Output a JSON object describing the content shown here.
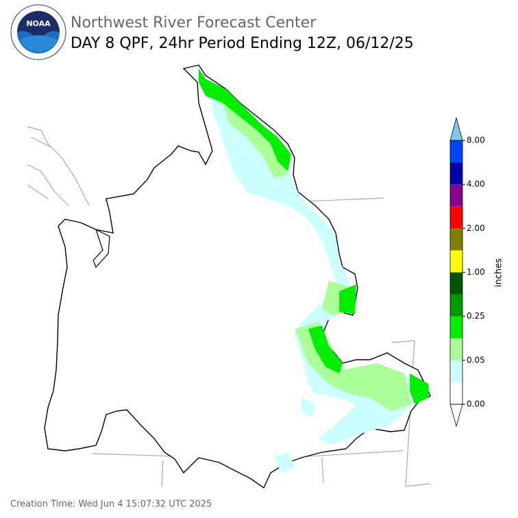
{
  "header": {
    "title": "Northwest River Forecast Center",
    "subtitle": "DAY 8 QPF, 24hr Period Ending 12Z, 06/12/25",
    "logo_text": "NOAA"
  },
  "legend": {
    "label": "inches",
    "colors": [
      "#ffffff",
      "#ccffff",
      "#aaff99",
      "#00ee00",
      "#009900",
      "#005500",
      "#ffff00",
      "#808000",
      "#ff0000",
      "#880088",
      "#0000aa",
      "#0044ff"
    ],
    "under_color": "#ffffff",
    "over_color": "#77ccee",
    "tick_labels": [
      "0.00",
      "0.05",
      "0.25",
      "1.00",
      "2.00",
      "4.00",
      "8.00"
    ]
  },
  "footer": "Creation Time: Wed Jun 4 15:07:32 UTC 2025"
}
